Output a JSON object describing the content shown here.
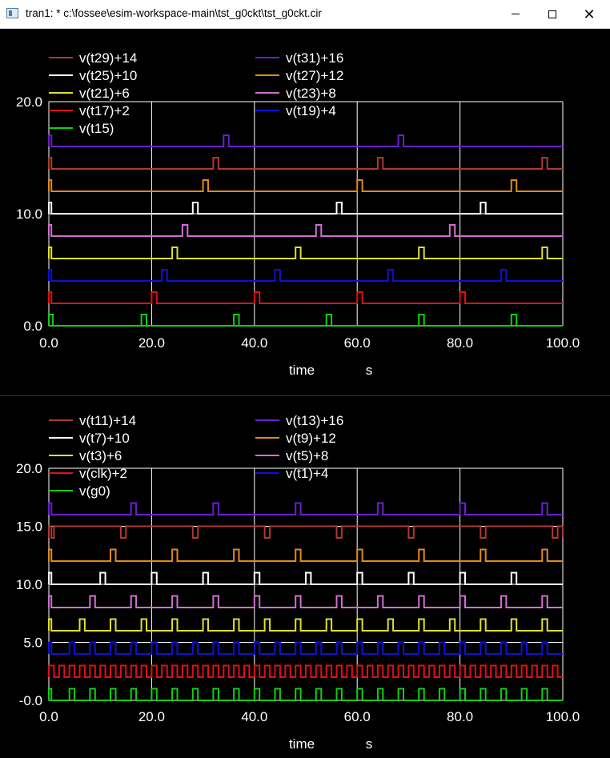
{
  "window": {
    "title": "tran1: * c:\\fossee\\esim-workspace-main\\tst_g0ckt\\tst_g0ckt.cir",
    "minimize_label": "minimize",
    "maximize_label": "maximize",
    "close_label": "close"
  },
  "colors": {
    "background": "#000000",
    "grid": "#ffffff",
    "text": "#ffffff"
  },
  "chart_data": [
    {
      "type": "line",
      "xlabel": "time",
      "xunit": "s",
      "xlim": [
        0,
        100
      ],
      "ylim": [
        0,
        20
      ],
      "xticks": [
        "0.0",
        "20.0",
        "40.0",
        "60.0",
        "80.0",
        "100.0"
      ],
      "yticks": [
        "0.0",
        "10.0",
        "20.0"
      ],
      "grid": true,
      "legend_position": "top-left",
      "series": [
        {
          "name": "v(t29)+14",
          "color": "#b03a2e",
          "offset": 14,
          "amplitude": 1,
          "pulses": [
            [
              0,
              0.5
            ],
            [
              32,
              1
            ],
            [
              64,
              1
            ],
            [
              96,
              1
            ]
          ]
        },
        {
          "name": "v(t31)+16",
          "color": "#6a1fd0",
          "offset": 16,
          "amplitude": 1,
          "pulses": [
            [
              0,
              0.5
            ],
            [
              34,
              1
            ],
            [
              68,
              1
            ]
          ]
        },
        {
          "name": "v(t25)+10",
          "color": "#ffffff",
          "offset": 10,
          "amplitude": 1,
          "pulses": [
            [
              0,
              0.5
            ],
            [
              28,
              1
            ],
            [
              56,
              1
            ],
            [
              84,
              1
            ]
          ]
        },
        {
          "name": "v(t27)+12",
          "color": "#e08a1a",
          "offset": 12,
          "amplitude": 1,
          "pulses": [
            [
              0,
              0.5
            ],
            [
              30,
              1
            ],
            [
              60,
              1
            ],
            [
              90,
              1
            ]
          ]
        },
        {
          "name": "v(t21)+6",
          "color": "#e0e02a",
          "offset": 6,
          "amplitude": 1,
          "pulses": [
            [
              0,
              0.5
            ],
            [
              24,
              1
            ],
            [
              48,
              1
            ],
            [
              72,
              1
            ],
            [
              96,
              1
            ]
          ]
        },
        {
          "name": "v(t23)+8",
          "color": "#d070d0",
          "offset": 8,
          "amplitude": 1,
          "pulses": [
            [
              0,
              0.5
            ],
            [
              26,
              1
            ],
            [
              52,
              1
            ],
            [
              78,
              1
            ]
          ]
        },
        {
          "name": "v(t17)+2",
          "color": "#e01010",
          "offset": 2,
          "amplitude": 1,
          "pulses": [
            [
              0,
              0.5
            ],
            [
              20,
              1
            ],
            [
              40,
              1
            ],
            [
              60,
              1
            ],
            [
              80,
              1
            ]
          ]
        },
        {
          "name": "v(t19)+4",
          "color": "#1010d8",
          "offset": 4,
          "amplitude": 1,
          "pulses": [
            [
              0,
              0.5
            ],
            [
              22,
              1
            ],
            [
              44,
              1
            ],
            [
              66,
              1
            ],
            [
              88,
              1
            ]
          ]
        },
        {
          "name": "v(t15)",
          "color": "#10d010",
          "offset": 0,
          "amplitude": 1,
          "pulses": [
            [
              0,
              0.8
            ],
            [
              18,
              1
            ],
            [
              36,
              1
            ],
            [
              54,
              1
            ],
            [
              72,
              1
            ],
            [
              90,
              1
            ]
          ]
        }
      ]
    },
    {
      "type": "line",
      "xlabel": "time",
      "xunit": "s",
      "xlim": [
        0,
        100
      ],
      "ylim": [
        0,
        20
      ],
      "xticks": [
        "0.0",
        "20.0",
        "40.0",
        "60.0",
        "80.0",
        "100.0"
      ],
      "yticks": [
        "-0.0",
        "5.0",
        "10.0",
        "15.0",
        "20.0"
      ],
      "grid": true,
      "legend_position": "top-left",
      "series": [
        {
          "name": "v(t11)+14",
          "color": "#b03a2e",
          "offset": 14,
          "amplitude": 1,
          "pulses": [
            [
              0,
              0.5
            ],
            [
              1,
              13
            ],
            [
              15,
              13
            ],
            [
              29,
              13
            ],
            [
              43,
              13
            ],
            [
              57,
              13
            ],
            [
              71,
              13
            ],
            [
              85,
              13
            ],
            [
              99,
              1
            ]
          ]
        },
        {
          "name": "v(t13)+16",
          "color": "#6a1fd0",
          "offset": 16,
          "amplitude": 1,
          "pulses": [
            [
              0,
              0.5
            ],
            [
              16,
              1
            ],
            [
              32,
              1
            ],
            [
              48,
              1
            ],
            [
              64,
              1
            ],
            [
              80,
              1
            ],
            [
              96,
              1
            ]
          ]
        },
        {
          "name": "v(t7)+10",
          "color": "#ffffff",
          "offset": 10,
          "amplitude": 1,
          "pulses": [
            [
              0,
              0.5
            ],
            [
              10,
              1
            ],
            [
              20,
              1
            ],
            [
              30,
              1
            ],
            [
              40,
              1
            ],
            [
              50,
              1
            ],
            [
              60,
              1
            ],
            [
              70,
              1
            ],
            [
              80,
              1
            ],
            [
              90,
              1
            ]
          ]
        },
        {
          "name": "v(t9)+12",
          "color": "#e08a1a",
          "offset": 12,
          "amplitude": 1,
          "pulses": [
            [
              0,
              0.5
            ],
            [
              12,
              1
            ],
            [
              24,
              1
            ],
            [
              36,
              1
            ],
            [
              48,
              1
            ],
            [
              60,
              1
            ],
            [
              72,
              1
            ],
            [
              84,
              1
            ],
            [
              96,
              1
            ]
          ]
        },
        {
          "name": "v(t3)+6",
          "color": "#e0e02a",
          "offset": 6,
          "amplitude": 1,
          "pulses": [
            [
              0,
              0.5
            ],
            [
              6,
              1
            ],
            [
              12,
              1
            ],
            [
              18,
              1
            ],
            [
              24,
              1
            ],
            [
              30,
              1
            ],
            [
              36,
              1
            ],
            [
              42,
              1
            ],
            [
              48,
              1
            ],
            [
              54,
              1
            ],
            [
              60,
              1
            ],
            [
              66,
              1
            ],
            [
              72,
              1
            ],
            [
              78,
              1
            ],
            [
              84,
              1
            ],
            [
              90,
              1
            ],
            [
              96,
              1
            ]
          ]
        },
        {
          "name": "v(t5)+8",
          "color": "#d070d0",
          "offset": 8,
          "amplitude": 1,
          "pulses": [
            [
              0,
              0.5
            ],
            [
              8,
              1
            ],
            [
              16,
              1
            ],
            [
              24,
              1
            ],
            [
              32,
              1
            ],
            [
              40,
              1
            ],
            [
              48,
              1
            ],
            [
              56,
              1
            ],
            [
              64,
              1
            ],
            [
              72,
              1
            ],
            [
              80,
              1
            ],
            [
              88,
              1
            ],
            [
              96,
              1
            ]
          ]
        },
        {
          "name": "v(clk)+2",
          "color": "#e01010",
          "offset": 2,
          "amplitude": 1,
          "period": 2,
          "duty": 0.5,
          "pulses": []
        },
        {
          "name": "v(t1)+4",
          "color": "#1010d8",
          "offset": 4,
          "amplitude": 1,
          "pulses": [
            [
              0,
              0.5
            ],
            [
              4,
              1
            ],
            [
              8,
              1
            ],
            [
              12,
              1
            ],
            [
              16,
              1
            ],
            [
              20,
              1
            ],
            [
              24,
              1
            ],
            [
              28,
              1
            ],
            [
              32,
              1
            ],
            [
              36,
              1
            ],
            [
              40,
              1
            ],
            [
              44,
              1
            ],
            [
              48,
              1
            ],
            [
              52,
              1
            ],
            [
              56,
              1
            ],
            [
              60,
              1
            ],
            [
              64,
              1
            ],
            [
              68,
              1
            ],
            [
              72,
              1
            ],
            [
              76,
              1
            ],
            [
              80,
              1
            ],
            [
              84,
              1
            ],
            [
              88,
              1
            ],
            [
              92,
              1
            ],
            [
              96,
              1
            ]
          ]
        },
        {
          "name": "v(g0)",
          "color": "#10d010",
          "offset": 0,
          "amplitude": 1,
          "pulses": [
            [
              0,
              0.5
            ],
            [
              4,
              1
            ],
            [
              8,
              1
            ],
            [
              12,
              1
            ],
            [
              16,
              1
            ],
            [
              20,
              1
            ],
            [
              24,
              1
            ],
            [
              28,
              1
            ],
            [
              32,
              1
            ],
            [
              36,
              1
            ],
            [
              40,
              1
            ],
            [
              44,
              1
            ],
            [
              48,
              1
            ],
            [
              52,
              1
            ],
            [
              56,
              1
            ],
            [
              60,
              1
            ],
            [
              64,
              1
            ],
            [
              68,
              1
            ],
            [
              72,
              1
            ],
            [
              76,
              1
            ],
            [
              80,
              1
            ],
            [
              84,
              1
            ],
            [
              88,
              1
            ],
            [
              92,
              1
            ],
            [
              96,
              1
            ]
          ]
        }
      ]
    }
  ]
}
